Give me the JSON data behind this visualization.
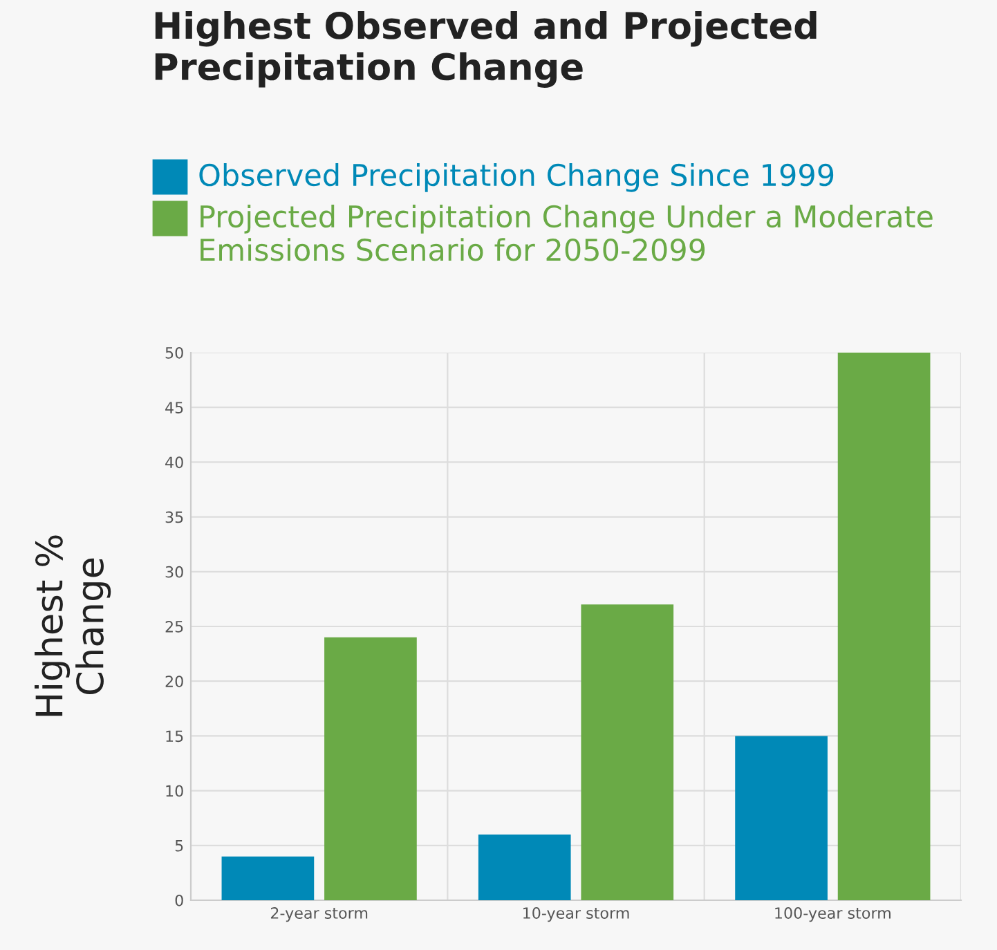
{
  "chart_data": {
    "type": "bar",
    "title": "Highest Observed and Projected\nPrecipitation Change",
    "ylabel": "Highest %\nChange",
    "categories": [
      "2-year storm",
      "10-year storm",
      "100-year storm"
    ],
    "series": [
      {
        "name": "Observed Precipitation Change Since 1999",
        "color": "#0089b7",
        "values": [
          4,
          6,
          15
        ]
      },
      {
        "name": "Projected Precipitation Change Under a Moderate Emissions Scenario for 2050-2099",
        "color": "#6aaa46",
        "values": [
          24,
          27,
          50
        ]
      }
    ],
    "ylim": [
      0,
      50
    ],
    "yticks": [
      0,
      5,
      10,
      15,
      20,
      25,
      30,
      35,
      40,
      45,
      50
    ],
    "grid": true,
    "legend": "top left"
  }
}
